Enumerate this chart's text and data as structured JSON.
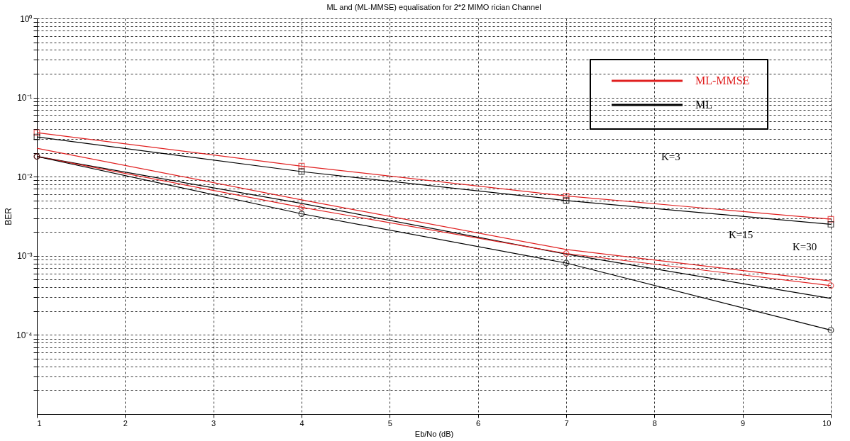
{
  "chart_data": {
    "type": "line",
    "title": "ML and (ML-MMSE) equalisation for 2*2 MIMO rician Channel",
    "xlabel": "Eb/No (dB)",
    "ylabel": "BER",
    "x": [
      1,
      4,
      7,
      10
    ],
    "series": [
      {
        "name": "ML-MMSE",
        "color": "#e02020",
        "marker": "square",
        "values": [
          0.036,
          0.0136,
          0.0057,
          0.0029
        ]
      },
      {
        "name": "ML",
        "color": "#000000",
        "marker": "square",
        "values": [
          0.0318,
          0.0116,
          0.005,
          0.0025
        ]
      },
      {
        "color": "#e02020",
        "marker": "none",
        "values": [
          0.0229,
          0.0051,
          0.0012,
          0.00048
        ]
      },
      {
        "color": "#000000",
        "marker": "none",
        "values": [
          0.018,
          0.0046,
          0.00105,
          0.00029
        ]
      },
      {
        "color": "#e02020",
        "marker": "circle",
        "values": [
          0.018,
          0.0041,
          0.00107,
          0.00042
        ]
      },
      {
        "color": "#000000",
        "marker": "circle",
        "values": [
          0.018,
          0.0034,
          0.00081,
          0.000115
        ]
      }
    ],
    "log": "y",
    "xlim": [
      1,
      10
    ],
    "xticks": [
      1,
      2,
      3,
      4,
      5,
      6,
      7,
      8,
      9,
      10
    ],
    "ylim": [
      1e-05,
      1
    ],
    "yticks": [
      {
        "value": 1,
        "label": "10⁰"
      },
      {
        "value": 0.1,
        "label": "10⁻¹"
      },
      {
        "value": 0.01,
        "label": "10⁻²"
      },
      {
        "value": 0.001,
        "label": "10⁻³"
      },
      {
        "value": 0.0001,
        "label": "10⁻⁴"
      },
      {
        "value": 2e-05,
        "label": null
      },
      {
        "value": 3e-05,
        "label": null
      },
      {
        "value": 4e-05,
        "label": null
      },
      {
        "value": 5e-05,
        "label": null
      },
      {
        "value": 6e-05,
        "label": null
      },
      {
        "value": 7e-05,
        "label": null
      },
      {
        "value": 8e-05,
        "label": null
      },
      {
        "value": 9e-05,
        "label": null
      },
      {
        "value": 0.0002,
        "label": null
      },
      {
        "value": 0.0003,
        "label": null
      },
      {
        "value": 0.0004,
        "label": null
      },
      {
        "value": 0.0005,
        "label": null
      },
      {
        "value": 0.0006,
        "label": null
      },
      {
        "value": 0.0007,
        "label": null
      },
      {
        "value": 0.0008,
        "label": null
      },
      {
        "value": 0.0009,
        "label": null
      },
      {
        "value": 0.002,
        "label": null
      },
      {
        "value": 0.003,
        "label": null
      },
      {
        "value": 0.004,
        "label": null
      },
      {
        "value": 0.005,
        "label": null
      },
      {
        "value": 0.006,
        "label": null
      },
      {
        "value": 0.007,
        "label": null
      },
      {
        "value": 0.008,
        "label": null
      },
      {
        "value": 0.009,
        "label": null
      },
      {
        "value": 0.02,
        "label": null
      },
      {
        "value": 0.03,
        "label": null
      },
      {
        "value": 0.04,
        "label": null
      },
      {
        "value": 0.05,
        "label": null
      },
      {
        "value": 0.06,
        "label": null
      },
      {
        "value": 0.07,
        "label": null
      },
      {
        "value": 0.08,
        "label": null
      },
      {
        "value": 0.09,
        "label": null
      },
      {
        "value": 0.2,
        "label": null
      },
      {
        "value": 0.3,
        "label": null
      },
      {
        "value": 0.4,
        "label": null
      },
      {
        "value": 0.5,
        "label": null
      },
      {
        "value": 0.6,
        "label": null
      },
      {
        "value": 0.7,
        "label": null
      },
      {
        "value": 0.8,
        "label": null
      },
      {
        "value": 0.9,
        "label": null
      }
    ],
    "grid": true,
    "legend": "top right",
    "line_style": "solid",
    "annotations": [
      "K=3",
      "K=15",
      "K=30"
    ]
  }
}
